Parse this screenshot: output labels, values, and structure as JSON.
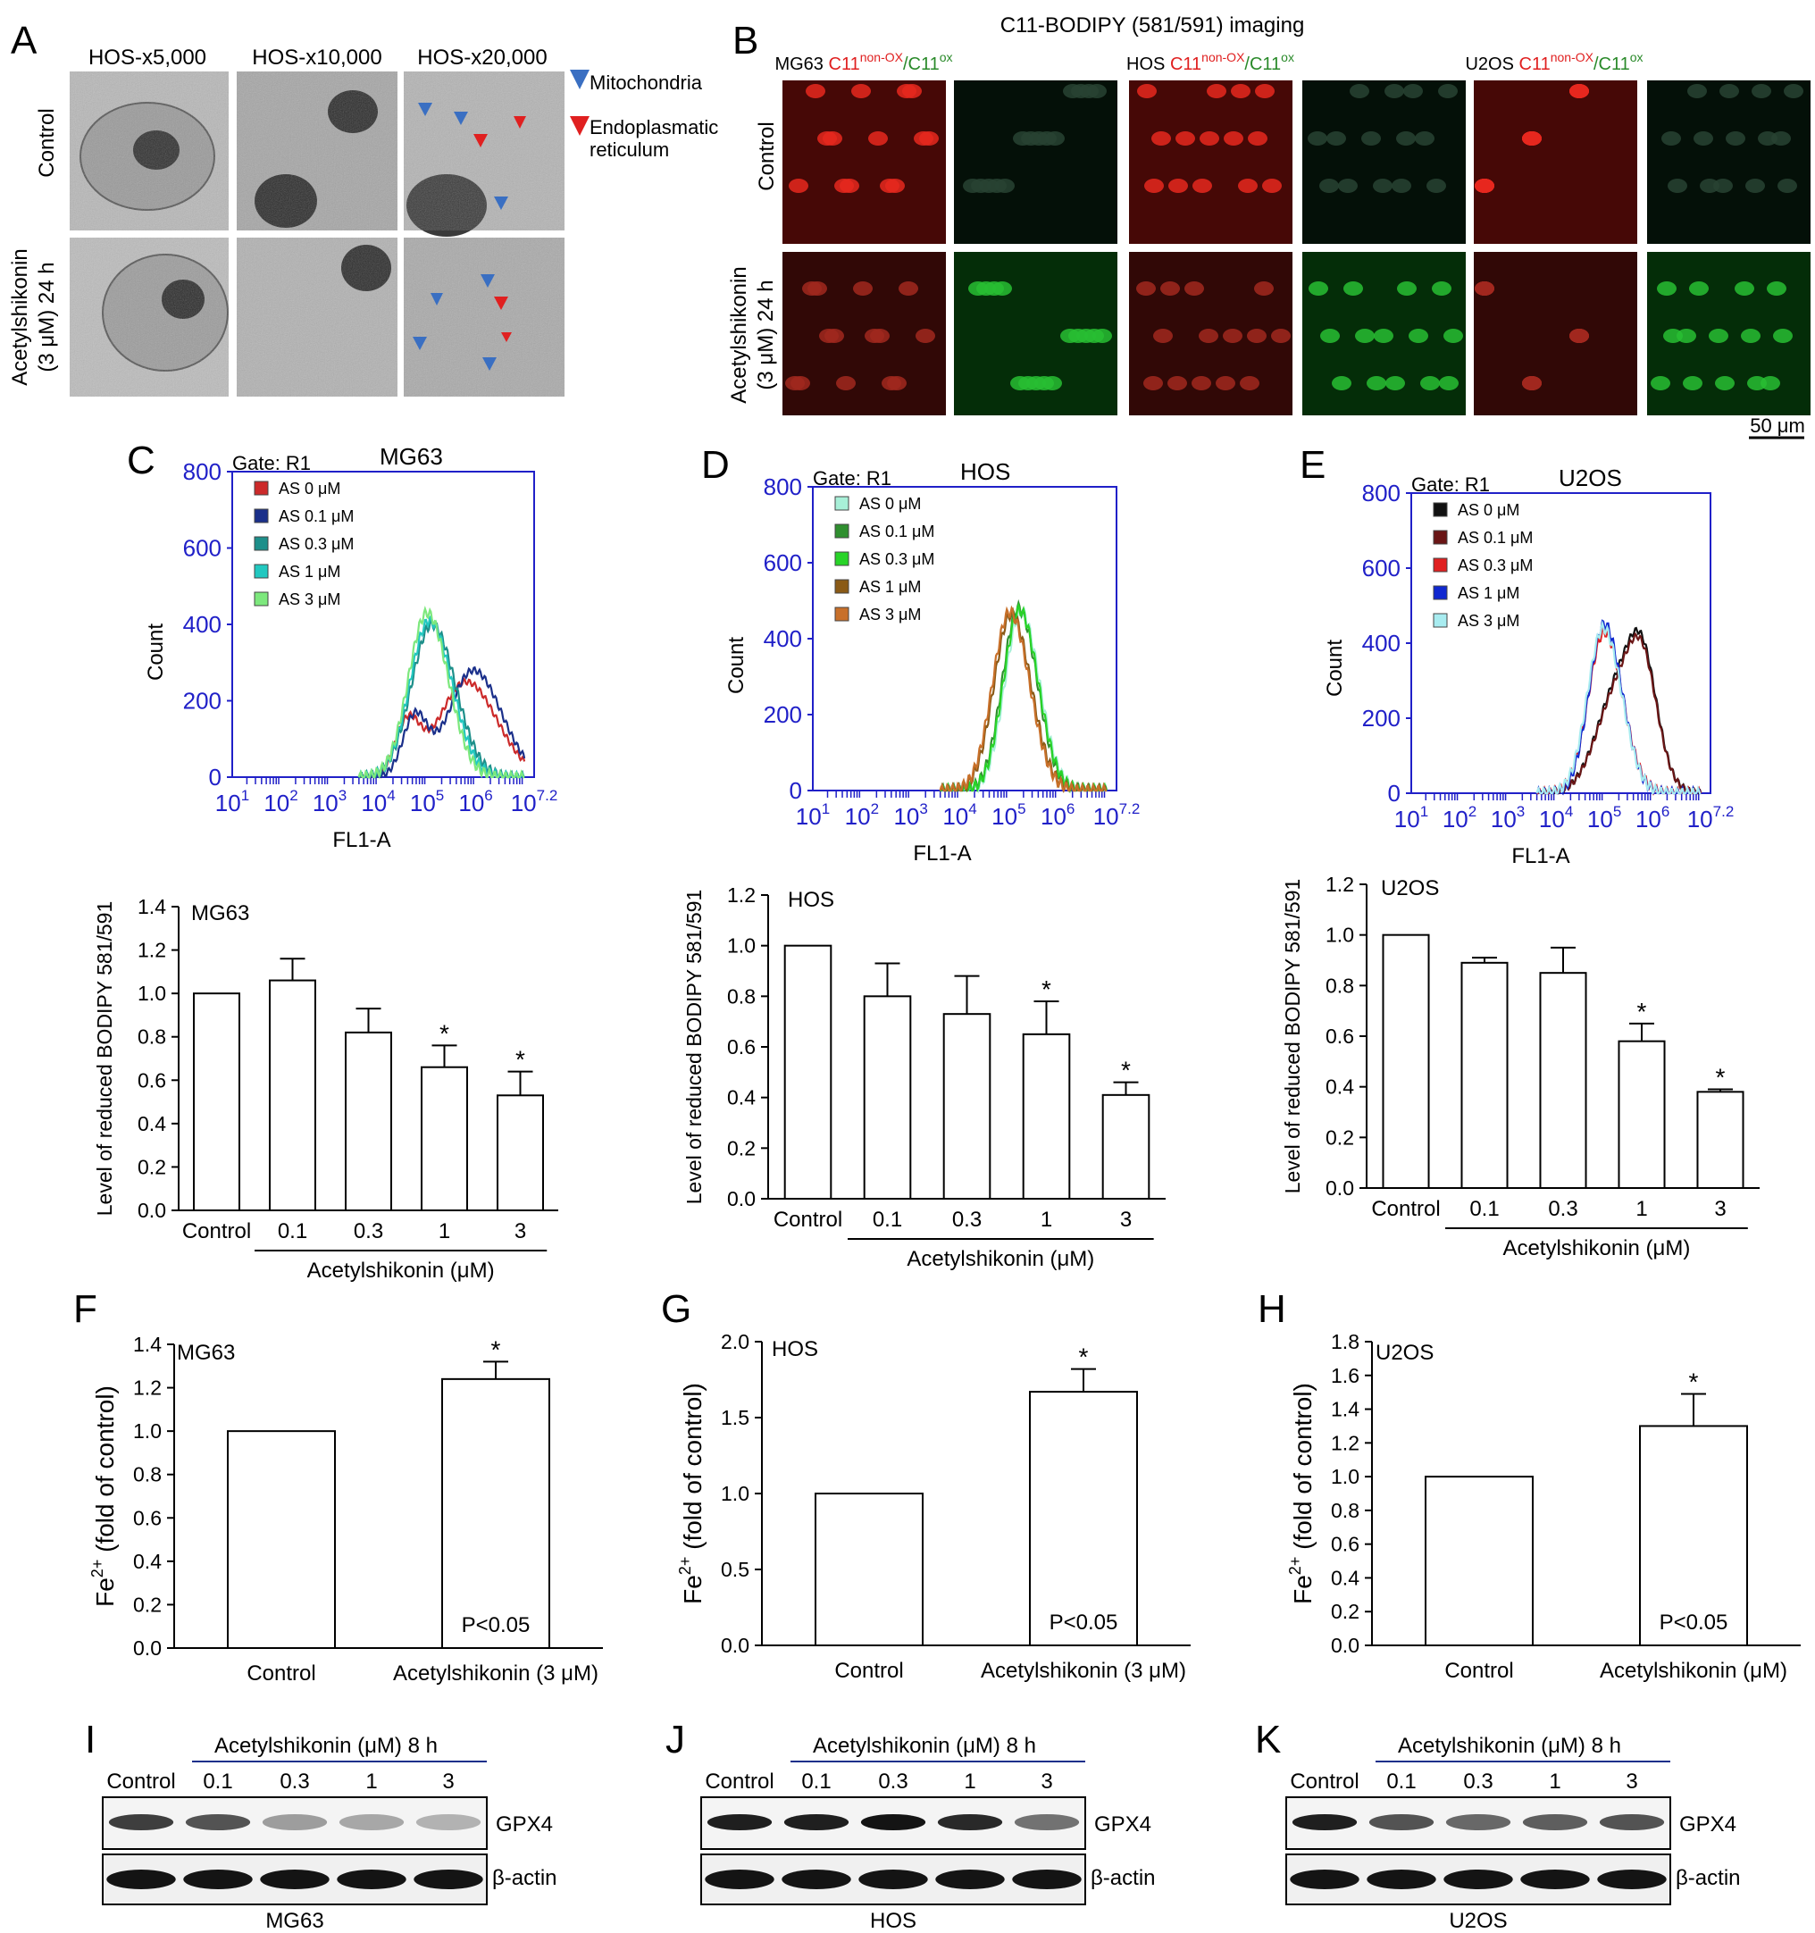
{
  "panelA": {
    "letter": "A",
    "col_headers": [
      "HOS-x5,000",
      "HOS-x10,000",
      "HOS-x20,000"
    ],
    "row_labels": [
      [
        "Control"
      ],
      [
        "Acetylshikonin",
        "(3 μM) 24 h"
      ]
    ],
    "legend": [
      {
        "label_lines": [
          "Mitochondria"
        ],
        "color": "#3a6fc2"
      },
      {
        "label_lines": [
          "Endoplasmatic",
          "reticulum"
        ],
        "color": "#e02020"
      }
    ]
  },
  "panelB": {
    "letter": "B",
    "title": "C11-BODIPY (581/591) imaging",
    "groups": [
      "MG63",
      "HOS",
      "U2OS"
    ],
    "probe_red": "C11",
    "sup_red": "non-OX",
    "probe_green": "/C11",
    "sup_green": "ox",
    "row_labels": [
      [
        "Control"
      ],
      [
        "Acetylshikonin",
        "(3 μM) 24 h"
      ]
    ],
    "scale_bar": "50 μm"
  },
  "flow": [
    {
      "letter": "C",
      "cell": "MG63",
      "gate": "Gate: R1",
      "ylabel": "Count",
      "xlabel": "FL1-A",
      "yticks": [
        "0",
        "200",
        "400",
        "600",
        "800"
      ],
      "xticks": [
        [
          "10",
          "1"
        ],
        [
          "10",
          "2"
        ],
        [
          "10",
          "3"
        ],
        [
          "10",
          "4"
        ],
        [
          "10",
          "5"
        ],
        [
          "10",
          "6"
        ],
        [
          "10",
          "7.2"
        ]
      ],
      "legend": [
        {
          "label": "AS 0 μM",
          "color": "#cc2a2a"
        },
        {
          "label": "AS 0.1 μM",
          "color": "#1a2f8a"
        },
        {
          "label": "AS 0.3 μM",
          "color": "#1d8f8a"
        },
        {
          "label": "AS 1 μM",
          "color": "#22c8c0"
        },
        {
          "label": "AS 3 μM",
          "color": "#7de87d"
        }
      ],
      "peaks": [
        [
          5.8,
          250,
          0.55
        ],
        [
          5.95,
          280,
          0.5
        ],
        [
          5.1,
          400,
          0.42
        ],
        [
          5.05,
          410,
          0.4
        ],
        [
          5.0,
          430,
          0.38
        ]
      ]
    },
    {
      "letter": "D",
      "cell": "HOS",
      "gate": "Gate: R1",
      "ylabel": "Count",
      "xlabel": "FL1-A",
      "yticks": [
        "0",
        "200",
        "400",
        "600",
        "800"
      ],
      "xticks": [
        [
          "10",
          "1"
        ],
        [
          "10",
          "2"
        ],
        [
          "10",
          "3"
        ],
        [
          "10",
          "4"
        ],
        [
          "10",
          "5"
        ],
        [
          "10",
          "6"
        ],
        [
          "10",
          "7.2"
        ]
      ],
      "legend": [
        {
          "label": "AS 0 μM",
          "color": "#a8f0d8"
        },
        {
          "label": "AS 0.1 μM",
          "color": "#2f8f2f"
        },
        {
          "label": "AS 0.3 μM",
          "color": "#28d428"
        },
        {
          "label": "AS 1 μM",
          "color": "#8a5a16"
        },
        {
          "label": "AS 3 μM",
          "color": "#c8702a"
        }
      ],
      "peaks": [
        [
          5.25,
          470,
          0.33
        ],
        [
          5.2,
          480,
          0.33
        ],
        [
          5.22,
          475,
          0.33
        ],
        [
          5.05,
          465,
          0.35
        ],
        [
          5.02,
          470,
          0.35
        ]
      ]
    },
    {
      "letter": "E",
      "cell": "U2OS",
      "gate": "Gate: R1",
      "ylabel": "Count",
      "xlabel": "FL1-A",
      "yticks": [
        "0",
        "200",
        "400",
        "600",
        "800"
      ],
      "xticks": [
        [
          "10",
          "1"
        ],
        [
          "10",
          "2"
        ],
        [
          "10",
          "3"
        ],
        [
          "10",
          "4"
        ],
        [
          "10",
          "5"
        ],
        [
          "10",
          "6"
        ],
        [
          "10",
          "7.2"
        ]
      ],
      "legend": [
        {
          "label": "AS 0 μM",
          "color": "#111111"
        },
        {
          "label": "AS 0.1 μM",
          "color": "#6a1515"
        },
        {
          "label": "AS 0.3 μM",
          "color": "#e02020"
        },
        {
          "label": "AS 1 μM",
          "color": "#1028d0"
        },
        {
          "label": "AS 3 μM",
          "color": "#a8ecf0"
        }
      ],
      "peaks": [
        [
          5.3,
          280,
          0.45
        ],
        [
          5.3,
          270,
          0.45
        ],
        [
          5.0,
          430,
          0.33
        ],
        [
          5.0,
          450,
          0.32
        ],
        [
          4.98,
          440,
          0.33
        ]
      ]
    }
  ],
  "bodipy": [
    {
      "cell": "MG63",
      "ylabel": "Level of reduced BODIPY 581/591",
      "xgroup": "Acetylshikonin (μM)",
      "yticks": [
        "0.0",
        "0.2",
        "0.4",
        "0.6",
        "0.8",
        "1.0",
        "1.2",
        "1.4"
      ],
      "categories": [
        "Control",
        "0.1",
        "0.3",
        "1",
        "3"
      ],
      "star": "*"
    },
    {
      "cell": "HOS",
      "ylabel": "Level of reduced BODIPY 581/591",
      "xgroup": "Acetylshikonin (μM)",
      "yticks": [
        "0.0",
        "0.2",
        "0.4",
        "0.6",
        "0.8",
        "1.0",
        "1.2"
      ],
      "categories": [
        "Control",
        "0.1",
        "0.3",
        "1",
        "3"
      ],
      "star": "*"
    },
    {
      "cell": "U2OS",
      "ylabel": "Level of reduced BODIPY 581/591",
      "xgroup": "Acetylshikonin (μM)",
      "yticks": [
        "0.0",
        "0.2",
        "0.4",
        "0.6",
        "0.8",
        "1.0",
        "1.2"
      ],
      "categories": [
        "Control",
        "0.1",
        "0.3",
        "1",
        "3"
      ],
      "star": "*"
    }
  ],
  "iron": [
    {
      "letter": "F",
      "cell": "MG63",
      "ylabel": "Fe",
      "ysup": "2+",
      "ylabel_rest": " (fold of control)",
      "yticks": [
        "0.0",
        "0.2",
        "0.4",
        "0.6",
        "0.8",
        "1.0",
        "1.2",
        "1.4"
      ],
      "categories": [
        "Control",
        "Acetylshikonin (3 μM)"
      ],
      "pval": "P<0.05",
      "star": "*"
    },
    {
      "letter": "G",
      "cell": "HOS",
      "ylabel": "Fe",
      "ysup": "2+",
      "ylabel_rest": " (fold of control)",
      "yticks": [
        "0.0",
        "0.5",
        "1.0",
        "1.5",
        "2.0"
      ],
      "categories": [
        "Control",
        "Acetylshikonin (3 μM)"
      ],
      "pval": "P<0.05",
      "star": "*"
    },
    {
      "letter": "H",
      "cell": "U2OS",
      "ylabel": "Fe",
      "ysup": "2+",
      "ylabel_rest": " (fold of control)",
      "yticks": [
        "0.0",
        "0.2",
        "0.4",
        "0.6",
        "0.8",
        "1.0",
        "1.2",
        "1.4",
        "1.6",
        "1.8"
      ],
      "categories": [
        "Control",
        "Acetylshikonin (μM)"
      ],
      "pval": "P<0.05",
      "star": "*"
    }
  ],
  "western": [
    {
      "letter": "I",
      "cell": "MG63",
      "header": "Acetylshikonin (μM) 8 h",
      "lanes": [
        "Control",
        "0.1",
        "0.3",
        "1",
        "3"
      ],
      "bands": [
        "GPX4",
        "β-actin"
      ],
      "gpx4": [
        0.8,
        0.7,
        0.35,
        0.3,
        0.25
      ]
    },
    {
      "letter": "J",
      "cell": "HOS",
      "header": "Acetylshikonin (μM) 8 h",
      "lanes": [
        "Control",
        "0.1",
        "0.3",
        "1",
        "3"
      ],
      "bands": [
        "GPX4",
        "β-actin"
      ],
      "gpx4": [
        0.95,
        0.95,
        1.0,
        0.9,
        0.55
      ]
    },
    {
      "letter": "K",
      "cell": "U2OS",
      "header": "Acetylshikonin (μM) 8 h",
      "lanes": [
        "Control",
        "0.1",
        "0.3",
        "1",
        "3"
      ],
      "bands": [
        "GPX4",
        "β-actin"
      ],
      "gpx4": [
        0.95,
        0.7,
        0.6,
        0.65,
        0.7
      ]
    }
  ],
  "chart_data": [
    {
      "type": "bar",
      "title": "MG63",
      "ylabel": "Level of reduced BODIPY 581/591",
      "xlabel": "Acetylshikonin (μM)",
      "categories": [
        "Control",
        "0.1",
        "0.3",
        "1",
        "3"
      ],
      "values": [
        1.0,
        1.06,
        0.82,
        0.66,
        0.53
      ],
      "errors": [
        0,
        0.1,
        0.11,
        0.1,
        0.11
      ],
      "significant": [
        false,
        false,
        false,
        true,
        true
      ],
      "ylim": [
        0,
        1.4
      ]
    },
    {
      "type": "bar",
      "title": "HOS",
      "ylabel": "Level of reduced BODIPY 581/591",
      "xlabel": "Acetylshikonin (μM)",
      "categories": [
        "Control",
        "0.1",
        "0.3",
        "1",
        "3"
      ],
      "values": [
        1.0,
        0.8,
        0.73,
        0.65,
        0.41
      ],
      "errors": [
        0,
        0.13,
        0.15,
        0.13,
        0.05
      ],
      "significant": [
        false,
        false,
        false,
        true,
        true
      ],
      "ylim": [
        0,
        1.2
      ]
    },
    {
      "type": "bar",
      "title": "U2OS",
      "ylabel": "Level of reduced BODIPY 581/591",
      "xlabel": "Acetylshikonin (μM)",
      "categories": [
        "Control",
        "0.1",
        "0.3",
        "1",
        "3"
      ],
      "values": [
        1.0,
        0.89,
        0.85,
        0.58,
        0.38
      ],
      "errors": [
        0,
        0.02,
        0.1,
        0.07,
        0.01
      ],
      "significant": [
        false,
        false,
        false,
        true,
        true
      ],
      "ylim": [
        0,
        1.2
      ]
    },
    {
      "type": "bar",
      "title": "MG63",
      "ylabel": "Fe2+ (fold of control)",
      "categories": [
        "Control",
        "Acetylshikonin (3 μM)"
      ],
      "values": [
        1.0,
        1.24
      ],
      "errors": [
        0,
        0.08
      ],
      "significant": [
        false,
        true
      ],
      "ylim": [
        0,
        1.4
      ]
    },
    {
      "type": "bar",
      "title": "HOS",
      "ylabel": "Fe2+ (fold of control)",
      "categories": [
        "Control",
        "Acetylshikonin (3 μM)"
      ],
      "values": [
        1.0,
        1.67
      ],
      "errors": [
        0,
        0.15
      ],
      "significant": [
        false,
        true
      ],
      "ylim": [
        0,
        2.0
      ]
    },
    {
      "type": "bar",
      "title": "U2OS",
      "ylabel": "Fe2+ (fold of control)",
      "categories": [
        "Control",
        "Acetylshikonin (μM)"
      ],
      "values": [
        1.0,
        1.3
      ],
      "errors": [
        0,
        0.19
      ],
      "significant": [
        false,
        true
      ],
      "ylim": [
        0,
        1.8
      ]
    }
  ]
}
